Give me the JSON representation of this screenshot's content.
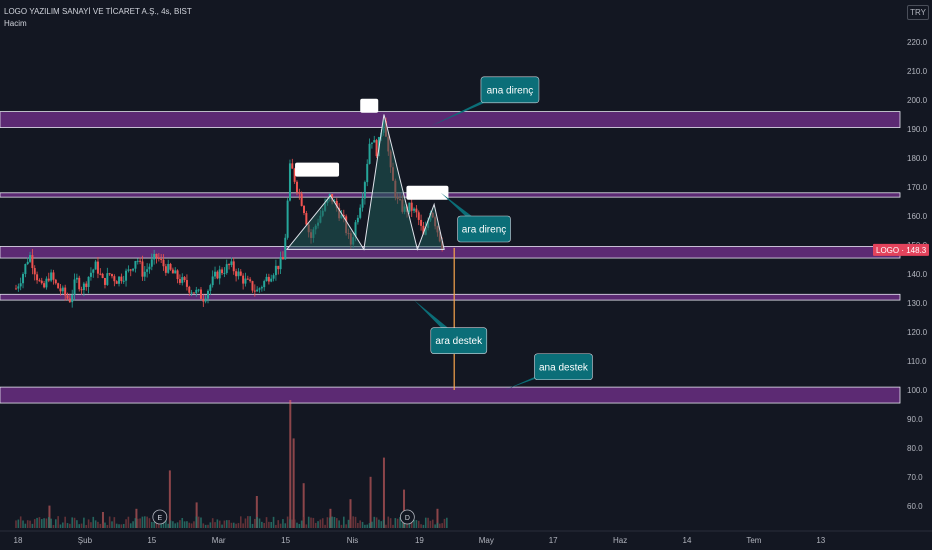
{
  "header": {
    "symbol_line": "LOGO YAZILIM SANAYİ VE TİCARET A.Ş., 4s, BIST",
    "volume_label": "Hacim"
  },
  "currency_badge": "TRY",
  "price_tag": {
    "label": "LOGO · 148.3",
    "value": 148.3,
    "color": "#e3435c"
  },
  "colors": {
    "up": "#26a69a",
    "down": "#ef5350",
    "zone": "#5c2a73",
    "callout": "#0b6e78",
    "projection": "#f7a44c",
    "pattern_fill": "#1f5a55"
  },
  "chart_data": {
    "type": "candlestick",
    "y_axis": {
      "min": 55,
      "max": 225,
      "ticks": [
        220,
        210,
        200,
        190,
        180,
        170,
        160,
        150,
        140,
        130,
        120,
        110,
        100,
        90,
        80,
        70,
        60
      ],
      "tick_labels": [
        "220.0",
        "210.0",
        "200.0",
        "190.0",
        "180.0",
        "170.0",
        "160.0",
        "150.0",
        "140.0",
        "130.0",
        "120.0",
        "110.0",
        "100.0",
        "90.0",
        "80.0",
        "70.0",
        "60.0"
      ]
    },
    "x_axis": {
      "labels": [
        "18",
        "Şub",
        "15",
        "Mar",
        "15",
        "Nis",
        "19",
        "May",
        "17",
        "Haz",
        "14",
        "Tem",
        "13"
      ],
      "label_units": [
        0,
        1,
        2,
        3,
        4,
        5,
        6,
        7,
        8,
        9,
        10,
        11,
        12
      ]
    },
    "price_path": [
      [
        0.0,
        135
      ],
      [
        0.1,
        140
      ],
      [
        0.2,
        147
      ],
      [
        0.3,
        140
      ],
      [
        0.4,
        134
      ],
      [
        0.5,
        140
      ],
      [
        0.6,
        136
      ],
      [
        0.8,
        131
      ],
      [
        0.9,
        138
      ],
      [
        1.0,
        135
      ],
      [
        1.1,
        140
      ],
      [
        1.2,
        143
      ],
      [
        1.3,
        137
      ],
      [
        1.4,
        140
      ],
      [
        1.5,
        138
      ],
      [
        1.7,
        141
      ],
      [
        1.8,
        146
      ],
      [
        1.9,
        140
      ],
      [
        2.0,
        143
      ],
      [
        2.1,
        146
      ],
      [
        2.2,
        143
      ],
      [
        2.4,
        139
      ],
      [
        2.6,
        135
      ],
      [
        2.8,
        132
      ],
      [
        3.0,
        140
      ],
      [
        3.2,
        143
      ],
      [
        3.4,
        138
      ],
      [
        3.6,
        134
      ],
      [
        3.8,
        140
      ],
      [
        4.0,
        145
      ],
      [
        4.1,
        178
      ],
      [
        4.2,
        170
      ],
      [
        4.3,
        163
      ],
      [
        4.4,
        152
      ],
      [
        4.5,
        158
      ],
      [
        4.7,
        167
      ],
      [
        4.9,
        158
      ],
      [
        5.0,
        150
      ],
      [
        5.1,
        160
      ],
      [
        5.2,
        170
      ],
      [
        5.3,
        188
      ],
      [
        5.4,
        182
      ],
      [
        5.5,
        195
      ],
      [
        5.6,
        175
      ],
      [
        5.7,
        165
      ],
      [
        5.8,
        162
      ],
      [
        5.9,
        163
      ],
      [
        6.0,
        160
      ],
      [
        6.1,
        152
      ],
      [
        6.2,
        163
      ],
      [
        6.3,
        155
      ],
      [
        6.4,
        148
      ]
    ],
    "pattern": {
      "name": "head-and-shoulders",
      "points": [
        [
          4.05,
          148.5
        ],
        [
          4.7,
          167
        ],
        [
          5.2,
          148.5
        ],
        [
          5.5,
          195
        ],
        [
          6.0,
          148.5
        ],
        [
          6.25,
          164
        ],
        [
          6.4,
          148.5
        ]
      ],
      "neckline": 148.5
    },
    "zones": [
      {
        "top": 196,
        "bottom": 190.5
      },
      {
        "top": 168,
        "bottom": 166.5
      },
      {
        "top": 149.5,
        "bottom": 145.5
      },
      {
        "top": 133,
        "bottom": 131
      },
      {
        "top": 101,
        "bottom": 95.5
      }
    ],
    "projection": {
      "x": 6.55,
      "from": 149,
      "to": 100
    },
    "volume": [
      {
        "x": 0.5,
        "v": 7
      },
      {
        "x": 1.3,
        "v": 5
      },
      {
        "x": 1.8,
        "v": 6
      },
      {
        "x": 2.3,
        "v": 18
      },
      {
        "x": 2.7,
        "v": 8
      },
      {
        "x": 3.6,
        "v": 10
      },
      {
        "x": 4.1,
        "v": 40
      },
      {
        "x": 4.15,
        "v": 28
      },
      {
        "x": 4.3,
        "v": 14
      },
      {
        "x": 4.7,
        "v": 6
      },
      {
        "x": 5.0,
        "v": 9
      },
      {
        "x": 5.3,
        "v": 16
      },
      {
        "x": 5.5,
        "v": 22
      },
      {
        "x": 5.8,
        "v": 12
      },
      {
        "x": 6.3,
        "v": 6
      }
    ],
    "events": [
      {
        "x": 2.15,
        "label": "E"
      },
      {
        "x": 5.85,
        "label": "D"
      }
    ],
    "annotations": [
      {
        "text": "ana direnç",
        "box_units": [
          6.95,
          208
        ],
        "anchor": [
          6.2,
          191
        ]
      },
      {
        "text": "ara direnç",
        "box_units": [
          6.6,
          160
        ],
        "anchor": [
          6.35,
          168
        ]
      },
      {
        "text": "ara destek",
        "box_units": [
          6.2,
          121.5
        ],
        "anchor": [
          5.95,
          131
        ]
      },
      {
        "text": "ana destek",
        "box_units": [
          7.75,
          112.5
        ],
        "anchor": [
          7.3,
          100
        ]
      }
    ],
    "marker_boxes": [
      {
        "x": 4.5,
        "y": 176
      },
      {
        "x": 5.28,
        "y": 198
      },
      {
        "x": 6.15,
        "y": 168
      }
    ]
  }
}
